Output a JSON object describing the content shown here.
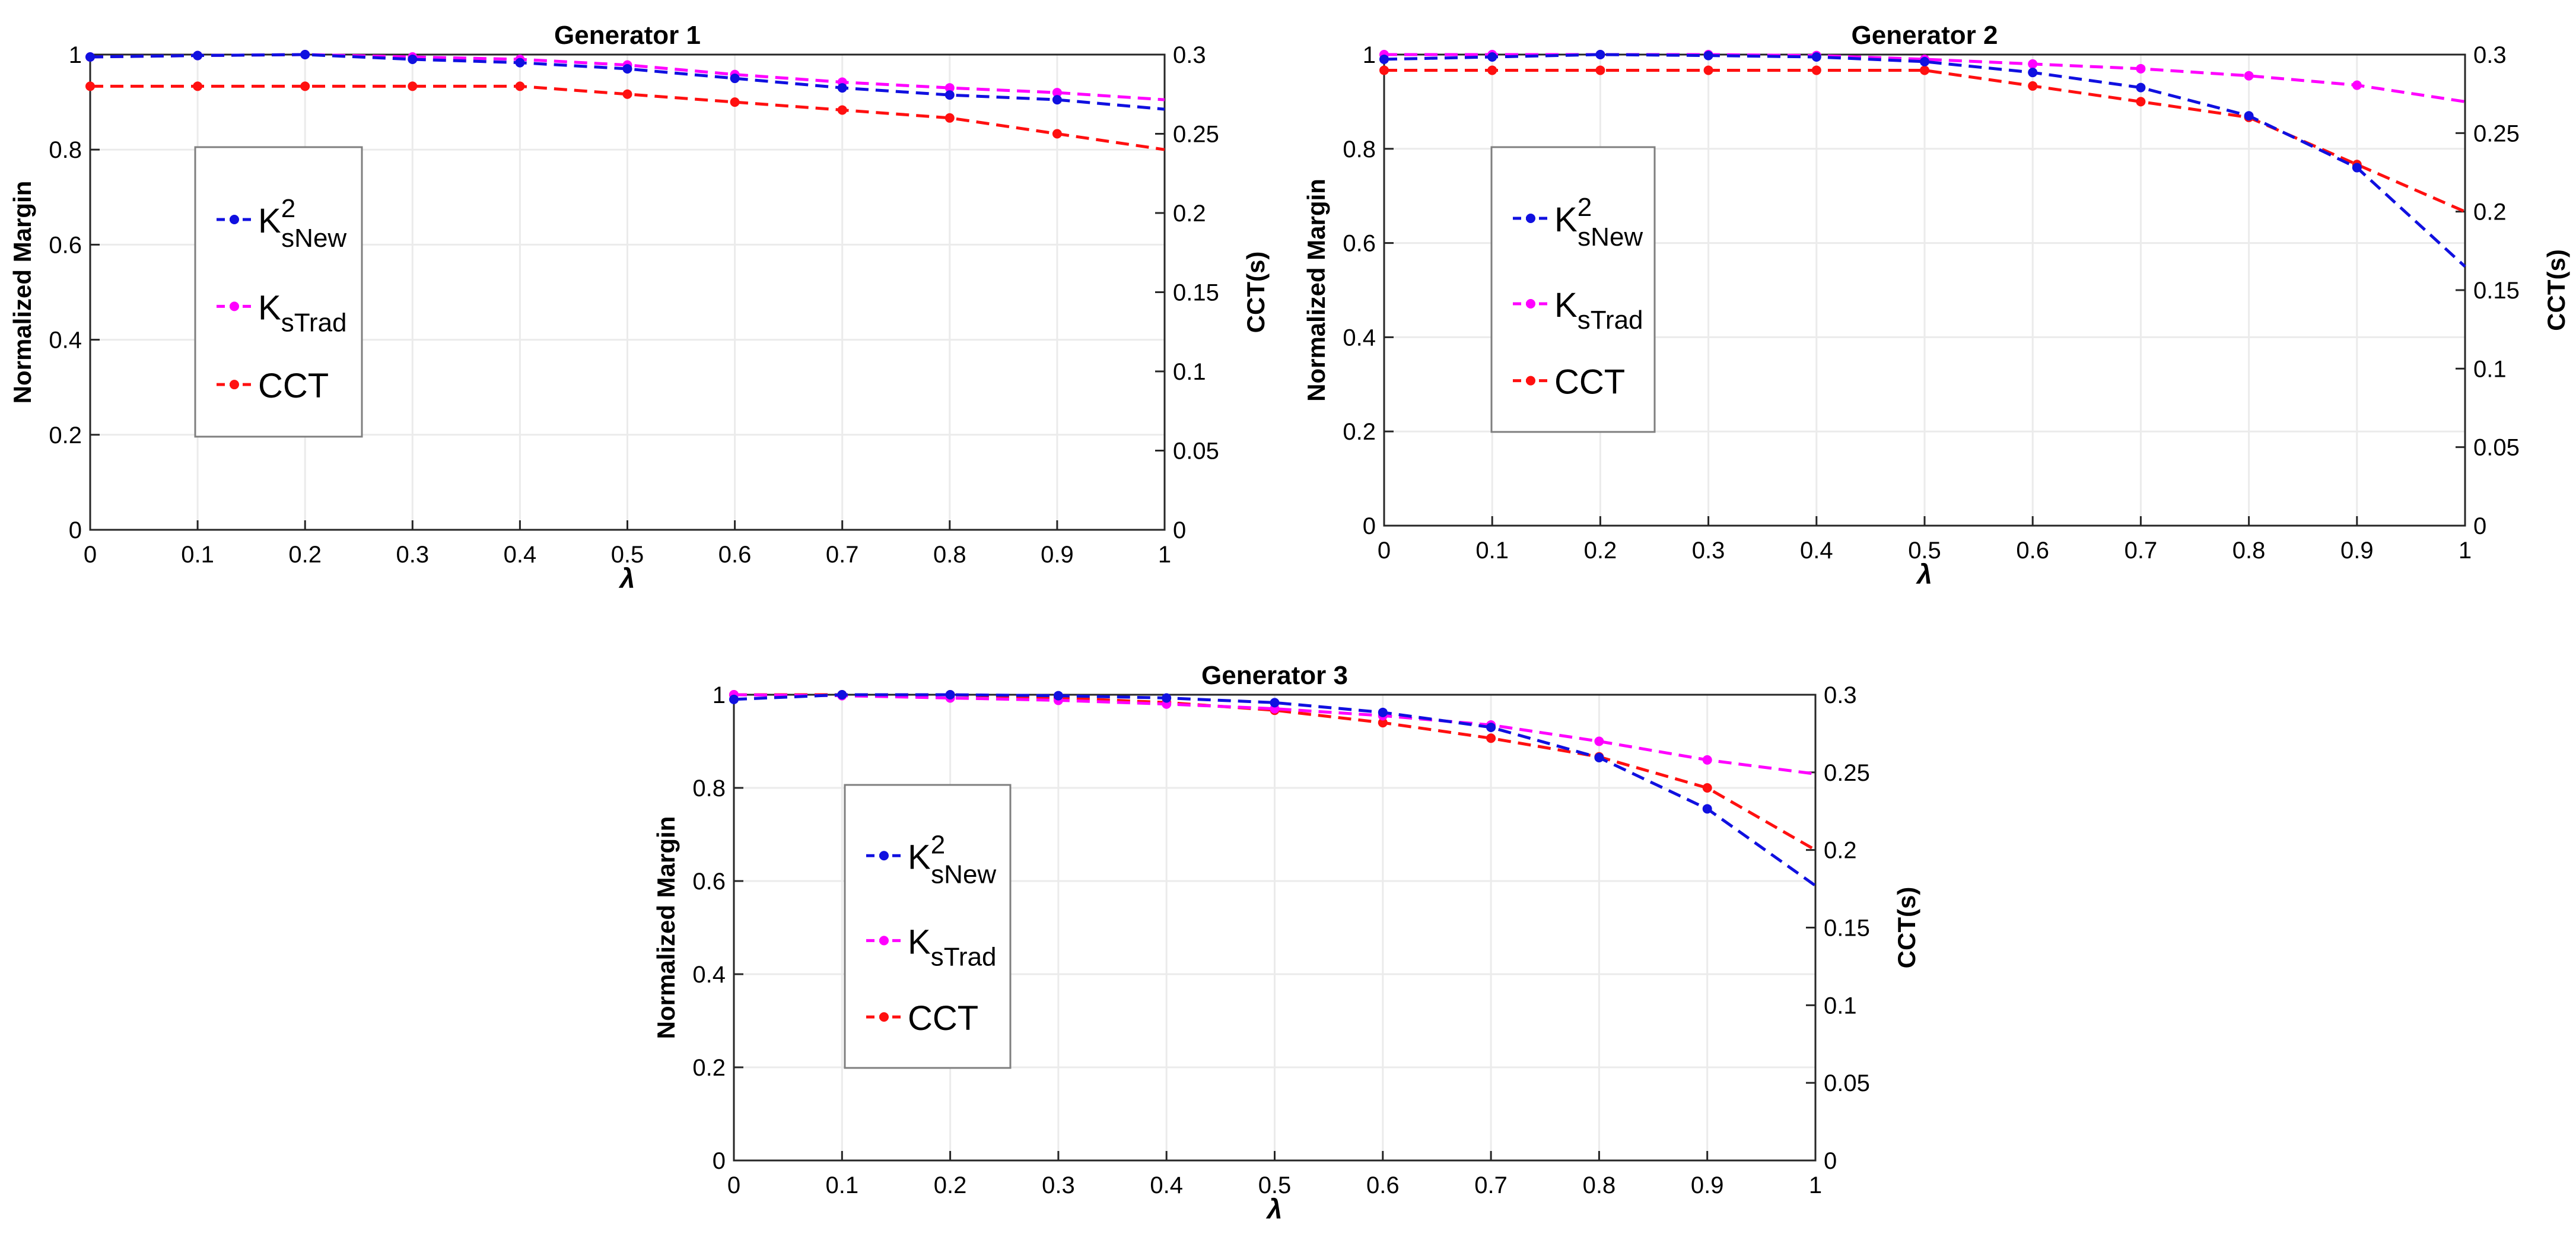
{
  "colors": {
    "ksnew": "#1010e0",
    "kstrad": "#ff00ff",
    "cct": "#ff1010",
    "axis": "#262626",
    "grid": "#ebebeb",
    "legend_border": "#7f7f7f"
  },
  "chart_data": [
    {
      "type": "line",
      "title": "Generator 1",
      "xlabel": "λ",
      "ylabel": "Normalized Margin",
      "y2label": "CCT(s)",
      "x": [
        0,
        0.1,
        0.2,
        0.3,
        0.4,
        0.5,
        0.6,
        0.7,
        0.8,
        0.9,
        1
      ],
      "xlim": [
        0,
        1
      ],
      "ylim": [
        0,
        1
      ],
      "y2lim": [
        0,
        0.3
      ],
      "xticks": [
        "0",
        "0.1",
        "0.2",
        "0.3",
        "0.4",
        "0.5",
        "0.6",
        "0.7",
        "0.8",
        "0.9",
        "1"
      ],
      "yticks": [
        "0",
        "0.2",
        "0.4",
        "0.6",
        "0.8",
        "1"
      ],
      "y2ticks": [
        "0",
        "0.05",
        "0.1",
        "0.15",
        "0.2",
        "0.25",
        "0.3"
      ],
      "grid": true,
      "legend_position": "left",
      "series": [
        {
          "legend_main": "K",
          "legend_sub": "sNew",
          "legend_sup": "2",
          "axis": "left",
          "color_key": "ksnew",
          "values": [
            0.995,
            0.998,
            1.0,
            0.99,
            0.983,
            0.97,
            0.95,
            0.93,
            0.915,
            0.905,
            0.885
          ]
        },
        {
          "legend_main": "K",
          "legend_sub": "sTrad",
          "legend_sup": "",
          "axis": "left",
          "color_key": "kstrad",
          "values": [
            0.995,
            0.998,
            1.0,
            0.995,
            0.99,
            0.978,
            0.958,
            0.942,
            0.93,
            0.92,
            0.905
          ]
        },
        {
          "legend_main": "CCT",
          "legend_sub": "",
          "legend_sup": "",
          "axis": "right",
          "color_key": "cct",
          "values": [
            0.28,
            0.28,
            0.28,
            0.28,
            0.28,
            0.275,
            0.27,
            0.265,
            0.26,
            0.25,
            0.24
          ]
        }
      ]
    },
    {
      "type": "line",
      "title": "Generator 2",
      "xlabel": "λ",
      "ylabel": "Normalized Margin",
      "y2label": "CCT(s)",
      "x": [
        0,
        0.1,
        0.2,
        0.3,
        0.4,
        0.5,
        0.6,
        0.7,
        0.8,
        0.9,
        1
      ],
      "xlim": [
        0,
        1
      ],
      "ylim": [
        0,
        1
      ],
      "y2lim": [
        0,
        0.3
      ],
      "xticks": [
        "0",
        "0.1",
        "0.2",
        "0.3",
        "0.4",
        "0.5",
        "0.6",
        "0.7",
        "0.8",
        "0.9",
        "1"
      ],
      "yticks": [
        "0",
        "0.2",
        "0.4",
        "0.6",
        "0.8",
        "1"
      ],
      "y2ticks": [
        "0",
        "0.05",
        "0.1",
        "0.15",
        "0.2",
        "0.25",
        "0.3"
      ],
      "grid": true,
      "legend_position": "left",
      "series": [
        {
          "legend_main": "K",
          "legend_sub": "sNew",
          "legend_sup": "2",
          "axis": "left",
          "color_key": "ksnew",
          "values": [
            0.99,
            0.995,
            1.0,
            0.998,
            0.995,
            0.985,
            0.962,
            0.93,
            0.87,
            0.76,
            0.55
          ]
        },
        {
          "legend_main": "K",
          "legend_sub": "sTrad",
          "legend_sup": "",
          "axis": "left",
          "color_key": "kstrad",
          "values": [
            1.0,
            1.0,
            1.0,
            1.0,
            0.998,
            0.99,
            0.98,
            0.97,
            0.955,
            0.935,
            0.9
          ]
        },
        {
          "legend_main": "CCT",
          "legend_sub": "",
          "legend_sup": "",
          "axis": "right",
          "color_key": "cct",
          "values": [
            0.29,
            0.29,
            0.29,
            0.29,
            0.29,
            0.29,
            0.28,
            0.27,
            0.26,
            0.23,
            0.2
          ]
        }
      ]
    },
    {
      "type": "line",
      "title": "Generator 3",
      "xlabel": "λ",
      "ylabel": "Normalized Margin",
      "y2label": "CCT(s)",
      "x": [
        0,
        0.1,
        0.2,
        0.3,
        0.4,
        0.5,
        0.6,
        0.7,
        0.8,
        0.9,
        1
      ],
      "xlim": [
        0,
        1
      ],
      "ylim": [
        0,
        1
      ],
      "y2lim": [
        0,
        0.3
      ],
      "xticks": [
        "0",
        "0.1",
        "0.2",
        "0.3",
        "0.4",
        "0.5",
        "0.6",
        "0.7",
        "0.8",
        "0.9",
        "1"
      ],
      "yticks": [
        "0",
        "0.2",
        "0.4",
        "0.6",
        "0.8",
        "1"
      ],
      "y2ticks": [
        "0",
        "0.05",
        "0.1",
        "0.15",
        "0.2",
        "0.25",
        "0.3"
      ],
      "grid": true,
      "legend_position": "left",
      "series": [
        {
          "legend_main": "K",
          "legend_sub": "sNew",
          "legend_sup": "2",
          "axis": "left",
          "color_key": "ksnew",
          "values": [
            0.99,
            1.0,
            1.0,
            0.998,
            0.993,
            0.983,
            0.962,
            0.93,
            0.865,
            0.755,
            0.59
          ]
        },
        {
          "legend_main": "K",
          "legend_sub": "sTrad",
          "legend_sup": "",
          "axis": "left",
          "color_key": "kstrad",
          "values": [
            1.0,
            0.998,
            0.993,
            0.988,
            0.98,
            0.97,
            0.955,
            0.935,
            0.9,
            0.86,
            0.83
          ]
        },
        {
          "legend_main": "CCT",
          "legend_sub": "",
          "legend_sup": "",
          "axis": "right",
          "color_key": "cct",
          "values": [
            0.3,
            0.3,
            0.3,
            0.298,
            0.295,
            0.29,
            0.282,
            0.272,
            0.26,
            0.24,
            0.2
          ]
        }
      ]
    }
  ]
}
